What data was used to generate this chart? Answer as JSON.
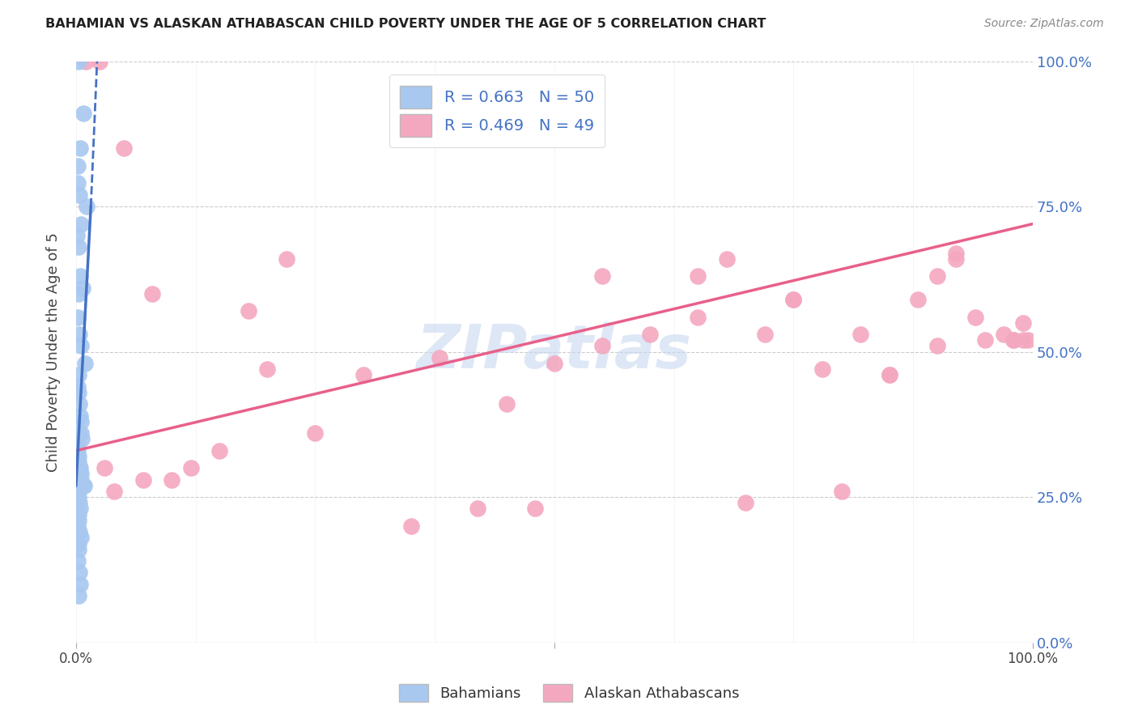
{
  "title": "BAHAMIAN VS ALASKAN ATHABASCAN CHILD POVERTY UNDER THE AGE OF 5 CORRELATION CHART",
  "source": "Source: ZipAtlas.com",
  "ylabel": "Child Poverty Under the Age of 5",
  "legend_label1": "Bahamians",
  "legend_label2": "Alaskan Athabascans",
  "R1": 0.663,
  "N1": 50,
  "R2": 0.469,
  "N2": 49,
  "color_blue": "#A8C8F0",
  "color_blue_line": "#4472C4",
  "color_pink": "#F4A8C0",
  "color_pink_line": "#E8608A",
  "watermark_color": "#C8D8F0",
  "background": "#FFFFFF",
  "blue_x": [
    0.3,
    0.8,
    0.4,
    0.15,
    0.2,
    0.35,
    1.1,
    0.5,
    0.1,
    0.3,
    0.4,
    0.7,
    0.25,
    0.2,
    0.35,
    0.5,
    0.9,
    0.3,
    0.2,
    0.25,
    0.35,
    0.4,
    0.5,
    0.55,
    0.6,
    0.12,
    0.18,
    0.3,
    0.25,
    0.35,
    0.42,
    0.48,
    0.55,
    0.75,
    0.85,
    0.18,
    0.3,
    0.35,
    0.42,
    0.22,
    0.28,
    0.18,
    0.35,
    0.5,
    0.22,
    0.28,
    0.18,
    0.35,
    0.4,
    0.22
  ],
  "blue_y": [
    100,
    91,
    85,
    82,
    79,
    77,
    75,
    72,
    70,
    68,
    63,
    61,
    60,
    56,
    53,
    51,
    48,
    46,
    44,
    43,
    41,
    39,
    38,
    36,
    35,
    34,
    33,
    32,
    31,
    30,
    30,
    29,
    28,
    27,
    27,
    26,
    25,
    24,
    23,
    22,
    21,
    20,
    19,
    18,
    17,
    16,
    14,
    12,
    10,
    8
  ],
  "pink_x": [
    1.0,
    2.5,
    5.0,
    8.0,
    12.0,
    18.0,
    22.0,
    30.0,
    38.0,
    42.0,
    48.0,
    55.0,
    60.0,
    65.0,
    68.0,
    72.0,
    75.0,
    78.0,
    82.0,
    85.0,
    88.0,
    90.0,
    92.0,
    94.0,
    95.0,
    97.0,
    98.0,
    99.0,
    99.5,
    3.0,
    4.0,
    7.0,
    10.0,
    15.0,
    20.0,
    25.0,
    35.0,
    45.0,
    50.0,
    70.0,
    80.0,
    85.0,
    90.0,
    98.0,
    99.0,
    55.0,
    65.0,
    75.0,
    92.0
  ],
  "pink_y": [
    100,
    100,
    85,
    60,
    30,
    57,
    66,
    46,
    49,
    23,
    23,
    51,
    53,
    63,
    66,
    53,
    59,
    47,
    53,
    46,
    59,
    51,
    66,
    56,
    52,
    53,
    52,
    55,
    52,
    30,
    26,
    28,
    28,
    33,
    47,
    36,
    20,
    41,
    48,
    24,
    26,
    46,
    63,
    52,
    52,
    63,
    56,
    59,
    67
  ],
  "pink_line_x0": 0,
  "pink_line_x1": 100,
  "pink_line_y0": 33,
  "pink_line_y1": 72,
  "blue_line_solid_x0": 0.0,
  "blue_line_solid_x1": 1.55,
  "blue_line_solid_y0": 27,
  "blue_line_solid_y1": 75,
  "blue_line_dash_x0": 1.55,
  "blue_line_dash_x1": 2.2,
  "blue_line_dash_y0": 75,
  "blue_line_dash_y1": 100,
  "xmin": 0,
  "xmax": 100,
  "ymin": 0,
  "ymax": 100,
  "yticks": [
    0,
    25,
    50,
    75,
    100
  ]
}
